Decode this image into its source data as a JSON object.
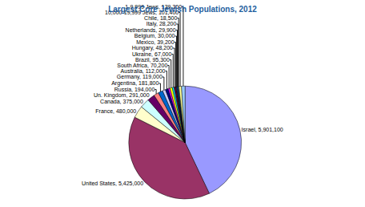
{
  "chart_data": {
    "type": "pie",
    "title": "Largest Core Jewish Populations, 2012",
    "categories": [
      "Israel",
      "United States",
      "France",
      "Canada",
      "Un. Kingdom",
      "Russia",
      "Argentina",
      "Germany",
      "Australia",
      "South Africa",
      "Brazil",
      "Ukraine",
      "Hungary",
      "Mexico",
      "Belgium",
      "Netherlands",
      "Italy",
      "Chile",
      "10,000-19,999 Jews",
      "1-9,999 Jews"
    ],
    "values": [
      5901100,
      5425000,
      480000,
      375000,
      291000,
      194000,
      181800,
      119000,
      112000,
      70200,
      95300,
      67000,
      48200,
      39200,
      30000,
      29900,
      28200,
      18500,
      101400,
      139300
    ],
    "value_labels": [
      "Israel, 5,901,100",
      "United States, 5,425,000",
      "France, 480,000",
      "Canada, 375,000",
      "Un. Kingdom, 291,000",
      "Russia, 194,000",
      "Argentina, 181,800",
      "Germany, 119,000",
      "Australia, 112,000",
      "South Africa, 70,200",
      "Brazil, 95,300",
      "Ukraine, 67,000",
      "Hungary, 48,200",
      "Mexico, 39,200",
      "Belgium, 30,000",
      "Netherlands, 29,900",
      "Italy, 28,200",
      "Chile, 18,500",
      "10,000-19,999 Jews, 101,400",
      "1-9,999 Jews, 139,300"
    ],
    "colors": [
      "#9999ff",
      "#993366",
      "#ffffcc",
      "#ccffff",
      "#660066",
      "#ff8080",
      "#0066cc",
      "#ccccff",
      "#000080",
      "#ff00ff",
      "#ffff00",
      "#00ffff",
      "#800080",
      "#800000",
      "#008080",
      "#0000ff",
      "#00ccff",
      "#ccffcc",
      "#ffff99",
      "#99ccff"
    ],
    "data_labels": true
  }
}
